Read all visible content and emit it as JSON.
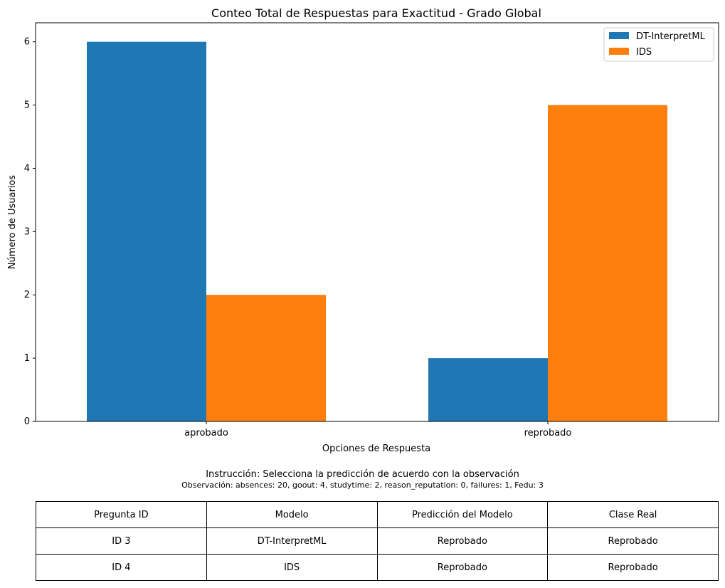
{
  "chart_data": {
    "type": "bar",
    "title": "Conteo Total de Respuestas para Exactitud - Grado Global",
    "xlabel": "Opciones de Respuesta",
    "ylabel": "Número de Usuarios",
    "categories": [
      "aprobado",
      "reprobado"
    ],
    "series": [
      {
        "name": "DT-InterpretML",
        "values": [
          6,
          1
        ],
        "color": "#1f77b4"
      },
      {
        "name": "IDS",
        "values": [
          2,
          5
        ],
        "color": "#ff7f0e"
      }
    ],
    "ylim": [
      0,
      6.3
    ],
    "yticks": [
      0,
      1,
      2,
      3,
      4,
      5,
      6
    ],
    "legend": "top-right",
    "grid": false
  },
  "instruction": {
    "line1": "Instrucción: Selecciona la predicción de acuerdo con la observación",
    "line2": "Observación: absences: 20, goout: 4, studytime: 2, reason_reputation: 0, failures: 1, Fedu: 3"
  },
  "table": {
    "headers": [
      "Pregunta ID",
      "Modelo",
      "Predicción del Modelo",
      "Clase Real"
    ],
    "rows": [
      [
        "ID 3",
        "DT-InterpretML",
        "Reprobado",
        "Reprobado"
      ],
      [
        "ID 4",
        "IDS",
        "Reprobado",
        "Reprobado"
      ]
    ]
  }
}
